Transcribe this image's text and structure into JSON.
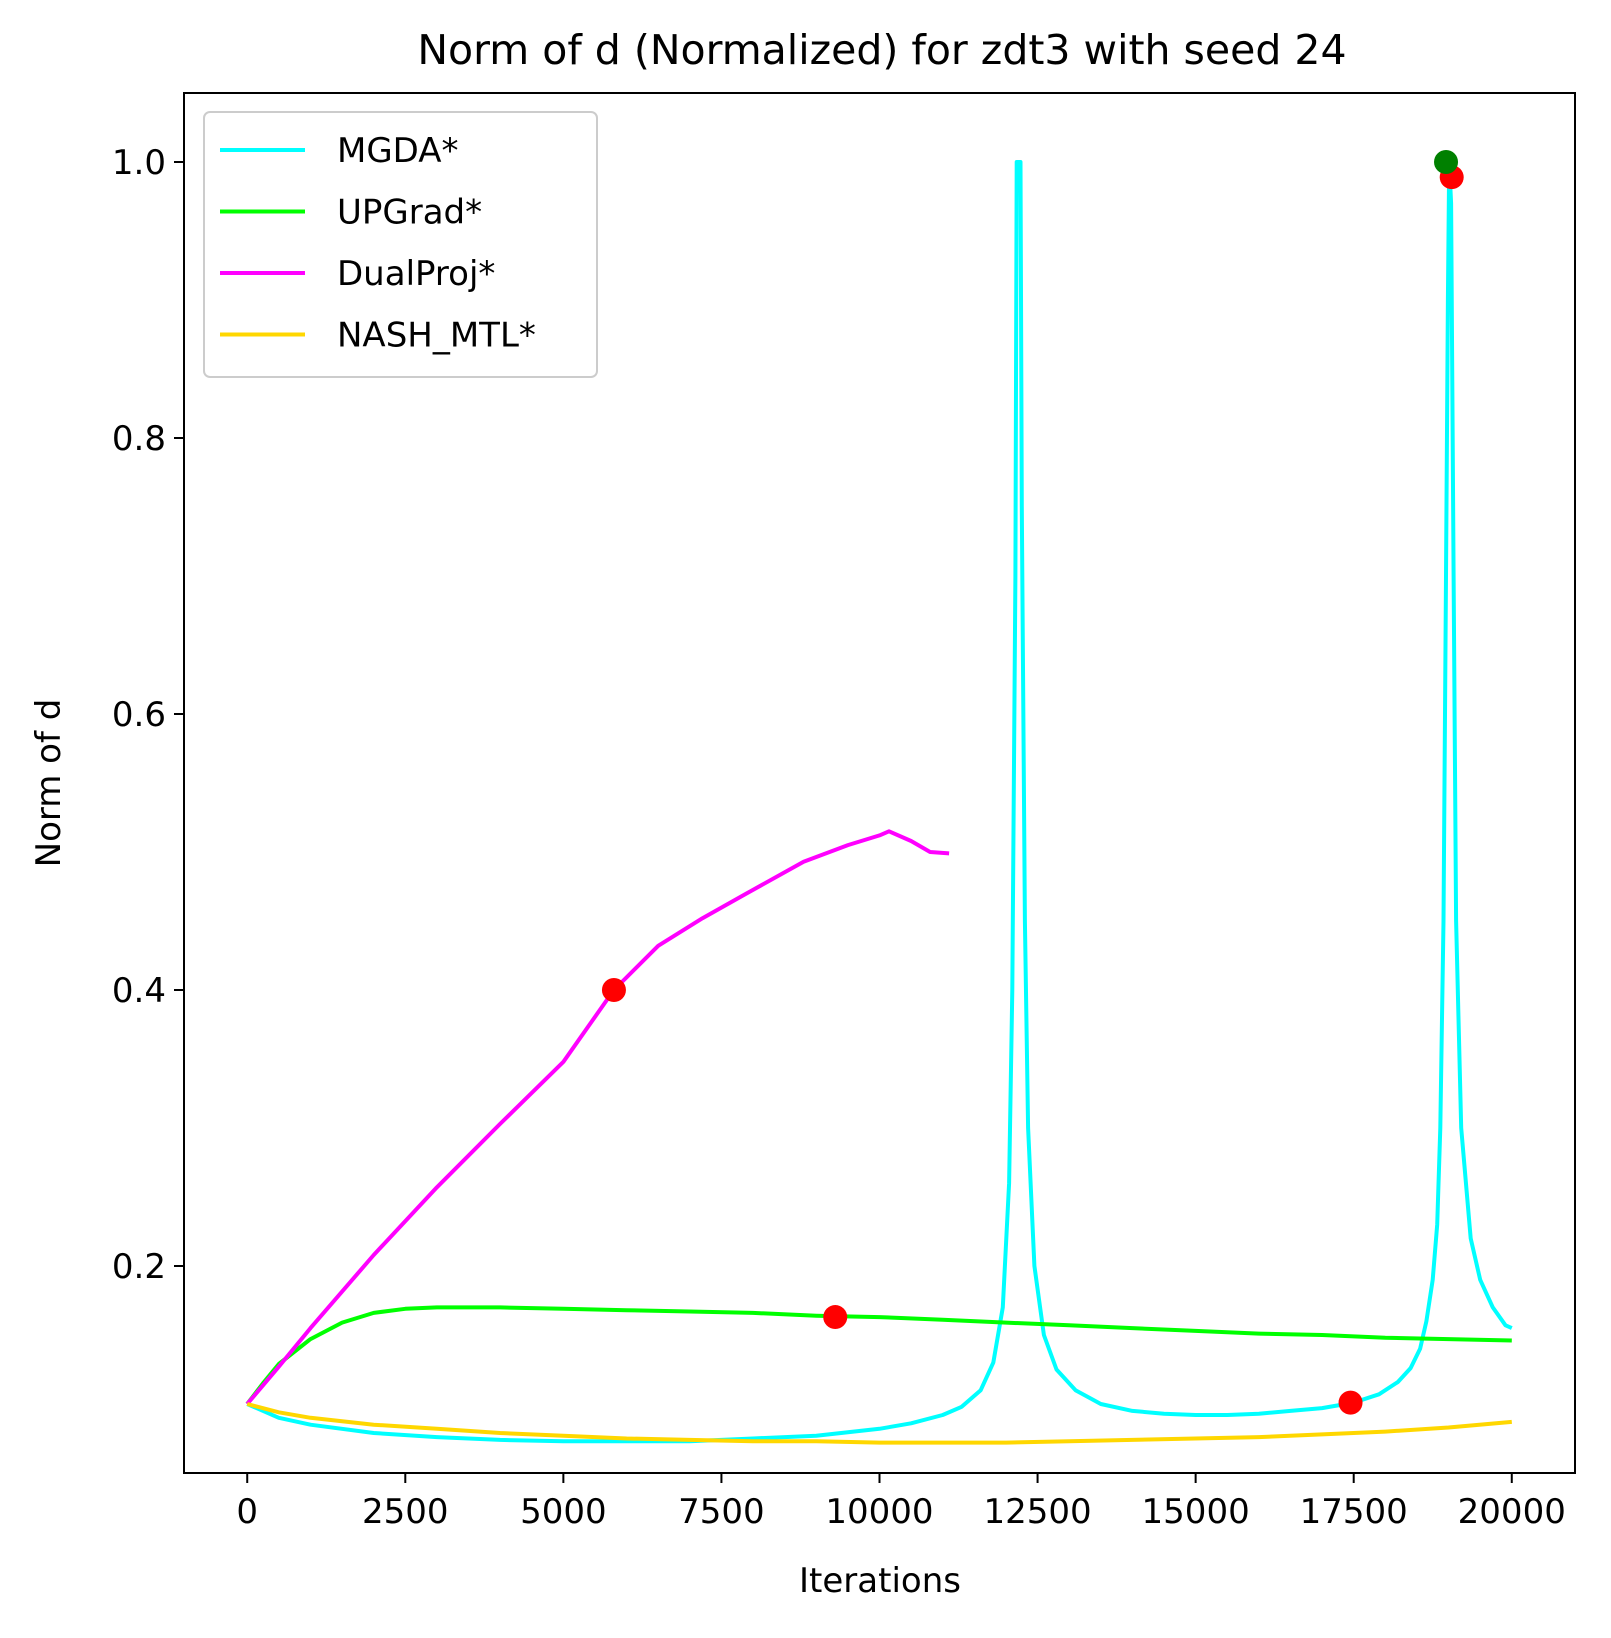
{
  "chart_data": {
    "type": "line",
    "title": "Norm of d (Normalized) for zdt3 with seed 24",
    "xlabel": "Iterations",
    "ylabel": "Norm of d",
    "xlim": [
      -1000,
      21000
    ],
    "ylim": [
      0.05,
      1.05
    ],
    "xticks": [
      0,
      2500,
      5000,
      7500,
      10000,
      12500,
      15000,
      17500,
      20000
    ],
    "xtick_labels": [
      "0",
      "2500",
      "5000",
      "7500",
      "10000",
      "12500",
      "15000",
      "17500",
      "20000"
    ],
    "yticks": [
      0.2,
      0.4,
      0.6,
      0.8,
      1.0
    ],
    "ytick_labels": [
      "0.2",
      "0.4",
      "0.6",
      "0.8",
      "1.0"
    ],
    "grid": false,
    "legend_position": "upper-left",
    "series": [
      {
        "name": "MGDA*",
        "color": "#00ffff",
        "x": [
          0,
          500,
          1000,
          2000,
          3000,
          4000,
          5000,
          6000,
          7000,
          8000,
          9000,
          10000,
          10500,
          11000,
          11300,
          11600,
          11800,
          11950,
          12050,
          12100,
          12150,
          12170,
          12200,
          12230,
          12250,
          12300,
          12350,
          12450,
          12600,
          12800,
          13100,
          13500,
          14000,
          14500,
          15000,
          15500,
          16000,
          16500,
          17000,
          17500,
          17900,
          18200,
          18400,
          18550,
          18650,
          18750,
          18820,
          18870,
          18920,
          18960,
          18990,
          19010,
          19040,
          19080,
          19120,
          19200,
          19350,
          19500,
          19700,
          19900,
          20000
        ],
        "y": [
          0.1,
          0.09,
          0.085,
          0.079,
          0.076,
          0.074,
          0.073,
          0.073,
          0.073,
          0.075,
          0.077,
          0.082,
          0.086,
          0.092,
          0.098,
          0.11,
          0.13,
          0.17,
          0.26,
          0.4,
          0.7,
          1.0,
          1.0,
          1.0,
          0.75,
          0.45,
          0.3,
          0.2,
          0.15,
          0.125,
          0.11,
          0.1,
          0.095,
          0.093,
          0.092,
          0.092,
          0.093,
          0.095,
          0.097,
          0.101,
          0.107,
          0.116,
          0.126,
          0.14,
          0.16,
          0.19,
          0.23,
          0.3,
          0.45,
          0.7,
          0.9,
          1.0,
          0.97,
          0.7,
          0.45,
          0.3,
          0.22,
          0.19,
          0.17,
          0.157,
          0.155
        ]
      },
      {
        "name": "UPGrad*",
        "color": "#00ff00",
        "x": [
          0,
          250,
          500,
          1000,
          1500,
          2000,
          2500,
          3000,
          4000,
          5000,
          6000,
          7000,
          8000,
          9000,
          10000,
          11000,
          12000,
          13000,
          14000,
          15000,
          16000,
          17000,
          18000,
          19000,
          20000
        ],
        "y": [
          0.1,
          0.115,
          0.129,
          0.147,
          0.159,
          0.166,
          0.169,
          0.17,
          0.17,
          0.169,
          0.168,
          0.167,
          0.166,
          0.164,
          0.163,
          0.161,
          0.159,
          0.157,
          0.155,
          0.153,
          0.151,
          0.15,
          0.148,
          0.147,
          0.146
        ]
      },
      {
        "name": "DualProj*",
        "color": "#ff00ff",
        "x": [
          0,
          500,
          1000,
          2000,
          3000,
          4000,
          5000,
          5800,
          6500,
          7200,
          7900,
          8800,
          9500,
          10000,
          10150,
          10500,
          10800,
          11100
        ],
        "y": [
          0.1,
          0.127,
          0.155,
          0.208,
          0.257,
          0.303,
          0.348,
          0.4,
          0.432,
          0.452,
          0.47,
          0.493,
          0.505,
          0.512,
          0.515,
          0.508,
          0.5,
          0.499
        ]
      },
      {
        "name": "NASH_MTL*",
        "color": "#ffd700",
        "x": [
          0,
          500,
          1000,
          2000,
          3000,
          4000,
          5000,
          6000,
          7000,
          8000,
          9000,
          10000,
          11000,
          12000,
          13000,
          14000,
          15000,
          16000,
          17000,
          18000,
          19000,
          20000
        ],
        "y": [
          0.1,
          0.094,
          0.09,
          0.085,
          0.082,
          0.079,
          0.077,
          0.075,
          0.074,
          0.073,
          0.073,
          0.072,
          0.072,
          0.072,
          0.073,
          0.074,
          0.075,
          0.076,
          0.078,
          0.08,
          0.083,
          0.087
        ]
      }
    ],
    "markers": [
      {
        "x": 5800,
        "y": 0.4,
        "color": "#ff0000"
      },
      {
        "x": 9300,
        "y": 0.163,
        "color": "#ff0000"
      },
      {
        "x": 17450,
        "y": 0.101,
        "color": "#ff0000"
      },
      {
        "x": 19050,
        "y": 0.989,
        "color": "#ff0000"
      },
      {
        "x": 18960,
        "y": 1.0,
        "color": "#008000"
      }
    ]
  }
}
